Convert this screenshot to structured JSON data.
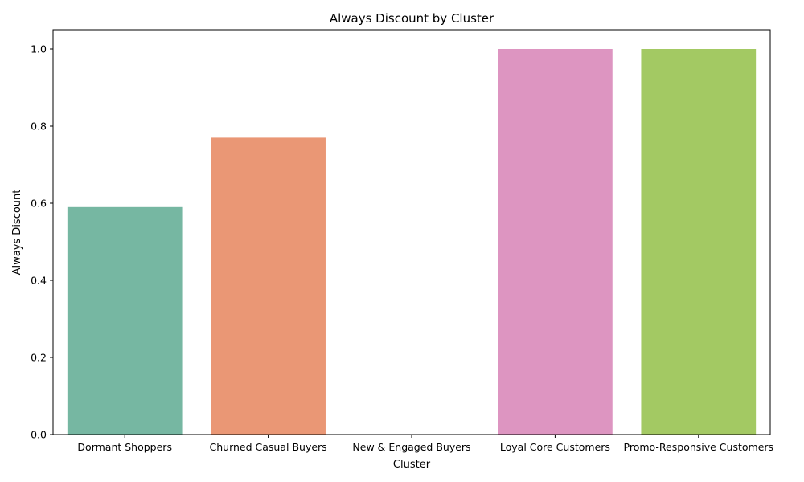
{
  "chart_data": {
    "type": "bar",
    "title": "Always Discount by Cluster",
    "xlabel": "Cluster",
    "ylabel": "Always Discount",
    "categories": [
      "Dormant Shoppers",
      "Churned Casual Buyers",
      "New & Engaged Buyers",
      "Loyal Core Customers",
      "Promo-Responsive Customers"
    ],
    "values": [
      0.59,
      0.77,
      0.0,
      1.0,
      1.0
    ],
    "colors": [
      "#76b7a2",
      "#ea9775",
      "#8da0cb",
      "#dd95c1",
      "#a3c963"
    ],
    "ylim": [
      0,
      1.05
    ],
    "yticks": [
      "0.0",
      "0.2",
      "0.4",
      "0.6",
      "0.8",
      "1.0"
    ],
    "grid": false,
    "legend": "none"
  }
}
